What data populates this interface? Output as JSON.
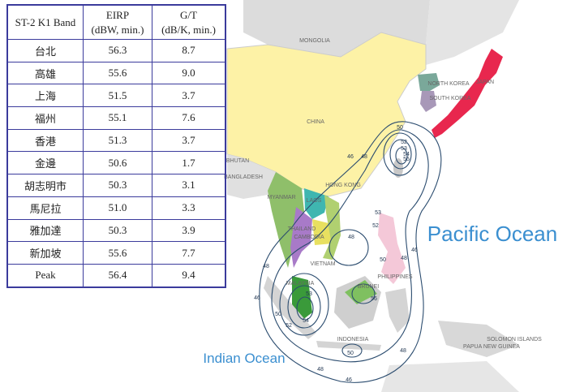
{
  "table": {
    "header": [
      {
        "title": "ST-2 K1 Band"
      },
      {
        "title": "EIRP",
        "unit": "(dBW, min.)"
      },
      {
        "title": "G/T",
        "unit": "(dB/K, min.)"
      }
    ],
    "rows": [
      [
        "台北",
        "56.3",
        "8.7"
      ],
      [
        "高雄",
        "55.6",
        "9.0"
      ],
      [
        "上海",
        "51.5",
        "3.7"
      ],
      [
        "福州",
        "55.1",
        "7.6"
      ],
      [
        "香港",
        "51.3",
        "3.7"
      ],
      [
        "金邊",
        "50.6",
        "1.7"
      ],
      [
        "胡志明市",
        "50.3",
        "3.1"
      ],
      [
        "馬尼拉",
        "51.0",
        "3.3"
      ],
      [
        "雅加達",
        "50.3",
        "3.9"
      ],
      [
        "新加坡",
        "55.6",
        "7.7"
      ],
      [
        "Peak",
        "56.4",
        "9.4"
      ]
    ]
  },
  "map": {
    "oceans": [
      "Pacific Ocean",
      "Indian Ocean"
    ],
    "countries": [
      "MONGOLIA",
      "CHINA",
      "NORTH KOREA",
      "SOUTH KOREA",
      "JAPAN",
      "BHUTAN",
      "BANGLADESH",
      "MYANMAR",
      "LAOS",
      "HONG KONG",
      "THAILAND",
      "CAMBODIA",
      "VIETNAM",
      "PHILIPPINES",
      "BRUNEI",
      "MALAYSIA",
      "INDONESIA",
      "PAPUA NEW GUINEA",
      "SOLOMON ISLANDS"
    ],
    "contour_labels": [
      50,
      46,
      48,
      52,
      53,
      54,
      55,
      53,
      52,
      48,
      50,
      48,
      46,
      48,
      46,
      50,
      52,
      53,
      54,
      56,
      50,
      48,
      48,
      46
    ]
  }
}
